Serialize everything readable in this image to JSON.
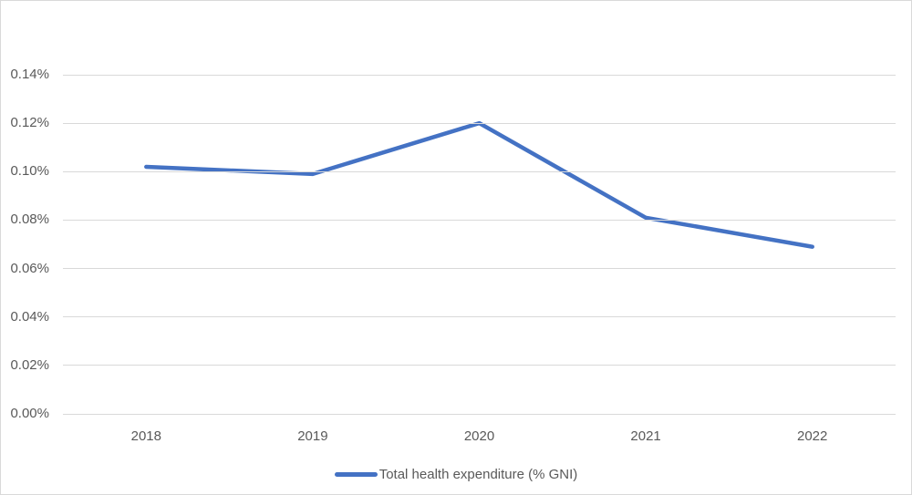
{
  "colors": {
    "line": "#4472C4",
    "gridline": "#D9D9D9",
    "axis_text": "#595959",
    "border": "#D9D9D9",
    "background": "#FFFFFF"
  },
  "legend": {
    "label": "Total health expenditure (% GNI)"
  },
  "chart_data": {
    "type": "line",
    "title": "",
    "xlabel": "",
    "ylabel": "",
    "categories": [
      "2018",
      "2019",
      "2020",
      "2021",
      "2022"
    ],
    "series": [
      {
        "name": "Total health expenditure (% GNI)",
        "values": [
          0.102,
          0.099,
          0.12,
          0.081,
          0.069
        ]
      }
    ],
    "ylim": [
      0,
      0.14
    ],
    "y_tick_step": 0.02,
    "y_tick_labels": [
      "0.00%",
      "0.02%",
      "0.04%",
      "0.06%",
      "0.08%",
      "0.10%",
      "0.12%",
      "0.14%"
    ],
    "grid": "horizontal",
    "legend_position": "bottom"
  }
}
